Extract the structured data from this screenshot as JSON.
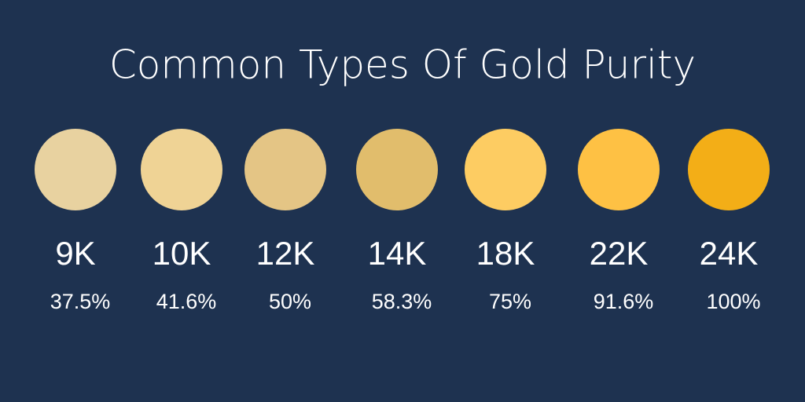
{
  "title": "Common Types Of Gold Purity",
  "items": [
    {
      "karat": "9K",
      "purity": "37.5%",
      "color": "#e8d2a0"
    },
    {
      "karat": "10K",
      "purity": "41.6%",
      "color": "#efd395"
    },
    {
      "karat": "12K",
      "purity": "50%",
      "color": "#e4c585"
    },
    {
      "karat": "14K",
      "purity": "58.3%",
      "color": "#e1bd6c"
    },
    {
      "karat": "18K",
      "purity": "75%",
      "color": "#fdcc62"
    },
    {
      "karat": "22K",
      "purity": "91.6%",
      "color": "#fec144"
    },
    {
      "karat": "24K",
      "purity": "100%",
      "color": "#f3ae17"
    }
  ]
}
